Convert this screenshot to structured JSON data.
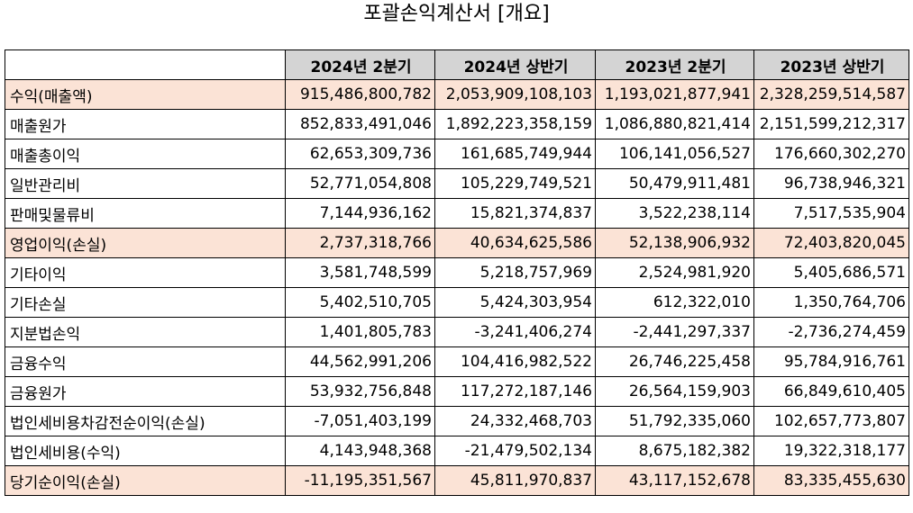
{
  "title": "포괄손익계산서 [개요]",
  "colors": {
    "header_bg": "#d4d4d4",
    "highlight_bg": "#fbe3d6"
  },
  "columns": [
    "",
    "2024년 2분기",
    "2024년 상반기",
    "2023년 2분기",
    "2023년 상반기"
  ],
  "rows": [
    {
      "label": "수익(매출액)",
      "highlight": true,
      "values": [
        "915,486,800,782",
        "2,053,909,108,103",
        "1,193,021,877,941",
        "2,328,259,514,587"
      ]
    },
    {
      "label": "매출원가",
      "highlight": false,
      "values": [
        "852,833,491,046",
        "1,892,223,358,159",
        "1,086,880,821,414",
        "2,151,599,212,317"
      ]
    },
    {
      "label": "매출총이익",
      "highlight": false,
      "values": [
        "62,653,309,736",
        "161,685,749,944",
        "106,141,056,527",
        "176,660,302,270"
      ]
    },
    {
      "label": "일반관리비",
      "highlight": false,
      "values": [
        "52,771,054,808",
        "105,229,749,521",
        "50,479,911,481",
        "96,738,946,321"
      ]
    },
    {
      "label": "판매및물류비",
      "highlight": false,
      "values": [
        "7,144,936,162",
        "15,821,374,837",
        "3,522,238,114",
        "7,517,535,904"
      ]
    },
    {
      "label": "영업이익(손실)",
      "highlight": true,
      "values": [
        "2,737,318,766",
        "40,634,625,586",
        "52,138,906,932",
        "72,403,820,045"
      ]
    },
    {
      "label": "기타이익",
      "highlight": false,
      "values": [
        "3,581,748,599",
        "5,218,757,969",
        "2,524,981,920",
        "5,405,686,571"
      ]
    },
    {
      "label": "기타손실",
      "highlight": false,
      "values": [
        "5,402,510,705",
        "5,424,303,954",
        "612,322,010",
        "1,350,764,706"
      ]
    },
    {
      "label": "지분법손익",
      "highlight": false,
      "values": [
        "1,401,805,783",
        "-3,241,406,274",
        "-2,441,297,337",
        "-2,736,274,459"
      ]
    },
    {
      "label": "금융수익",
      "highlight": false,
      "values": [
        "44,562,991,206",
        "104,416,982,522",
        "26,746,225,458",
        "95,784,916,761"
      ]
    },
    {
      "label": "금융원가",
      "highlight": false,
      "values": [
        "53,932,756,848",
        "117,272,187,146",
        "26,564,159,903",
        "66,849,610,405"
      ]
    },
    {
      "label": "법인세비용차감전순이익(손실)",
      "highlight": false,
      "values": [
        "-7,051,403,199",
        "24,332,468,703",
        "51,792,335,060",
        "102,657,773,807"
      ]
    },
    {
      "label": "법인세비용(수익)",
      "highlight": false,
      "values": [
        "4,143,948,368",
        "-21,479,502,134",
        "8,675,182,382",
        "19,322,318,177"
      ]
    },
    {
      "label": "당기순이익(손실)",
      "highlight": true,
      "values": [
        "-11,195,351,567",
        "45,811,970,837",
        "43,117,152,678",
        "83,335,455,630"
      ]
    }
  ]
}
